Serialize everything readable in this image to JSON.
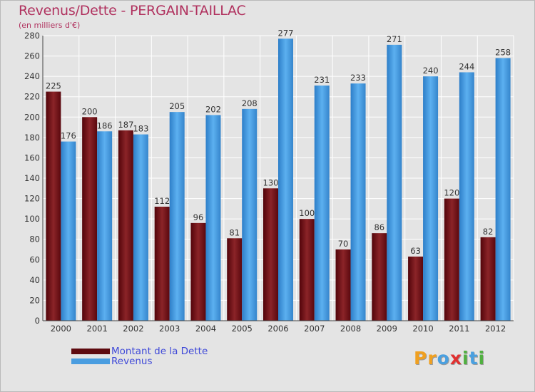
{
  "chart_data": {
    "type": "bar",
    "title": "Revenus/Dette - PERGAIN-TAILLAC",
    "subtitle": "(en milliers d'€)",
    "categories": [
      "2000",
      "2001",
      "2002",
      "2003",
      "2004",
      "2005",
      "2006",
      "2007",
      "2008",
      "2009",
      "2010",
      "2011",
      "2012"
    ],
    "series": [
      {
        "name": "Montant de la Dette",
        "color": "#7a1818",
        "values": [
          225,
          200,
          187,
          112,
          96,
          81,
          130,
          100,
          70,
          86,
          63,
          120,
          82
        ]
      },
      {
        "name": "Revenus",
        "color": "#4a9de0",
        "values": [
          176,
          186,
          183,
          205,
          202,
          208,
          277,
          231,
          233,
          271,
          240,
          244,
          258
        ]
      }
    ],
    "yticks": [
      0,
      20,
      40,
      60,
      80,
      100,
      120,
      140,
      160,
      180,
      200,
      220,
      240,
      260,
      280
    ],
    "ylim": [
      0,
      280
    ],
    "xlabel": "",
    "ylabel": "",
    "grid": true,
    "legend_position": "bottom-left"
  },
  "logo": {
    "letters": [
      "P",
      "r",
      "o",
      "x",
      "i",
      "t",
      "i"
    ],
    "colors": [
      "#f0a020",
      "#f0a020",
      "#4aa0e0",
      "#e03030",
      "#50b040",
      "#4aa0e0",
      "#50b040"
    ]
  }
}
